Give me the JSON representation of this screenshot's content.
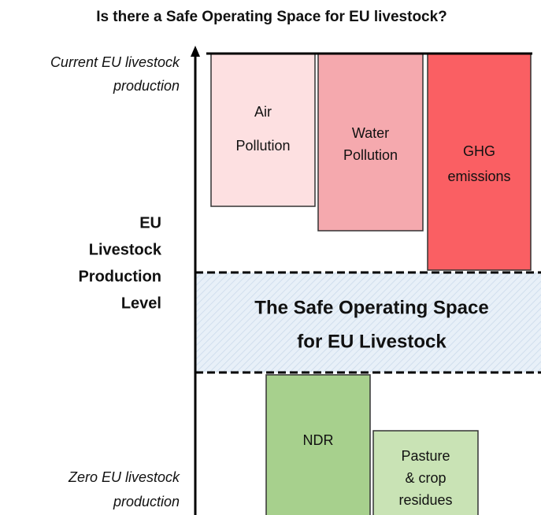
{
  "title": "Is there a Safe Operating Space for EU livestock?",
  "axis": {
    "top_label": [
      "Current EU livestock",
      "production"
    ],
    "label": [
      "EU",
      "Livestock",
      "Production",
      "Level"
    ],
    "bottom_label": [
      "Zero EU livestock",
      "production"
    ]
  },
  "upper_boxes": [
    {
      "lines": [
        "Air",
        "Pollution"
      ]
    },
    {
      "lines": [
        "Water",
        "Pollution"
      ]
    },
    {
      "lines": [
        "GHG",
        "emissions"
      ]
    }
  ],
  "safe_space": [
    "The Safe Operating Space",
    "for EU Livestock"
  ],
  "lower_boxes": [
    {
      "lines": [
        "NDR"
      ]
    },
    {
      "lines": [
        "Pasture",
        "& crop",
        "residues"
      ]
    }
  ]
}
